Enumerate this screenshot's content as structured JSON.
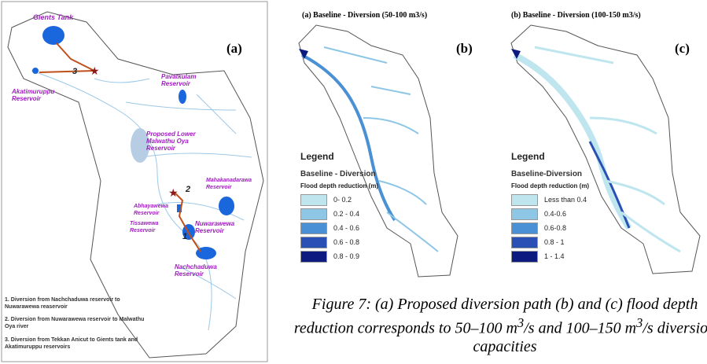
{
  "panel_a": {
    "tag": "(a)",
    "labels": [
      "Gients Tank",
      "Akatimuruppu Reservoir",
      "Pavatkulam Reservoir",
      "Proposed Lower Malwathu Oya Reservoir",
      "Mahakanadarawa Reservoir",
      "Abhayawewa Reservoir",
      "Tissawewa Reservoir",
      "Nuwarawewa Reservoir",
      "Nachchaduwa Reservoir"
    ],
    "path_numbers": [
      "1",
      "2",
      "3"
    ],
    "notes": [
      "1. Diversion from Nachchaduwa reservoir to Nuwarawewa reaservoir",
      "2. Diversion from Nuwarawewa reservoir to Malwathu Oya river",
      "3. Diversion from Tekkan Anicut to Gients tank and Akatimuruppu reservoirs"
    ]
  },
  "panel_b": {
    "title": "(a) Baseline - Diversion (50-100 m3/s)",
    "tag": "(b)",
    "legend_title": "Legend",
    "legend_subtitle": "Baseline - Diversion",
    "legend_heading": "Flood depth reduction (m)",
    "legend": [
      {
        "label": "0- 0.2",
        "color": "#bfe6ef"
      },
      {
        "label": "0.2 - 0.4",
        "color": "#8ec6e6"
      },
      {
        "label": "0.4 - 0.6",
        "color": "#4a90d4"
      },
      {
        "label": "0.6 - 0.8",
        "color": "#2a4fb5"
      },
      {
        "label": "0.8 - 0.9",
        "color": "#0d1a80"
      }
    ]
  },
  "panel_c": {
    "title": "(b) Baseline - Diversion (100-150 m3/s)",
    "tag": "(c)",
    "legend_title": "Legend",
    "legend_subtitle": "Baseline-Diversion",
    "legend_heading": "Flood depth reduction (m)",
    "legend": [
      {
        "label": "Less than 0.4",
        "color": "#bfe6ef"
      },
      {
        "label": "0.4-0.6",
        "color": "#8ec6e6"
      },
      {
        "label": "0.6-0.8",
        "color": "#4a90d4"
      },
      {
        "label": "0.8 - 1",
        "color": "#2a4fb5"
      },
      {
        "label": "1 - 1.4",
        "color": "#0d1a80"
      }
    ]
  },
  "caption": [
    "Figure 7: (a) Proposed diversion path (b) and (c) flood depth reduction corresponds to 50–100 m",
    "3",
    "/s and 100–150 m",
    "3",
    "/s diversion capacities"
  ]
}
